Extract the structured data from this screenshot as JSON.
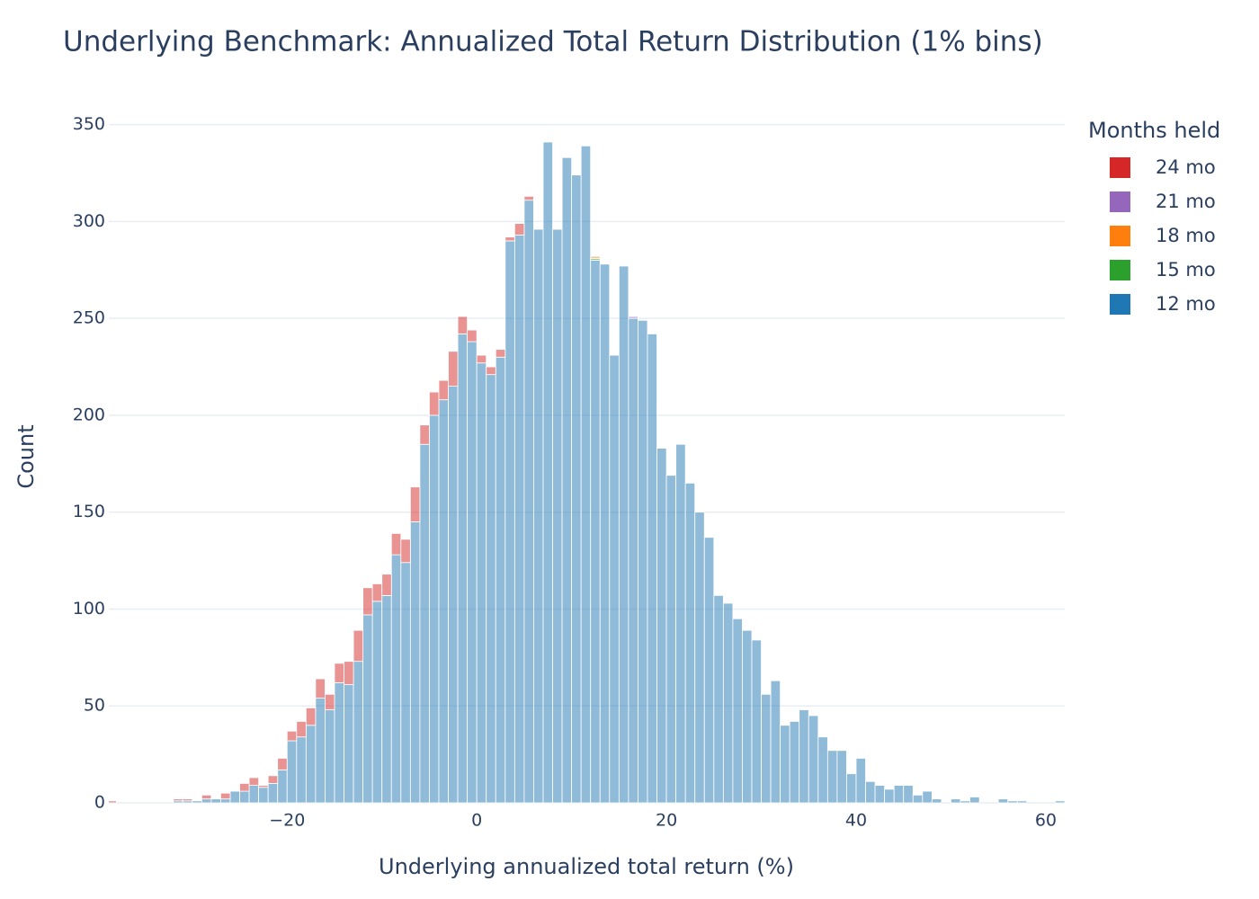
{
  "chart_data": {
    "type": "histogram",
    "title": "Underlying Benchmark: Annualized Total Return Distribution (1% bins)",
    "x_label": "Underlying annualized total return (%)",
    "y_label": "Count",
    "legend_title": "Months held",
    "legend_position": "right",
    "stacked": true,
    "opacity": 0.5,
    "grid": true,
    "bins": [
      -39,
      -38,
      -37,
      -36,
      -35,
      -34,
      -33,
      -32,
      -31,
      -30,
      -29,
      -28,
      -27,
      -26,
      -25,
      -24,
      -23,
      -22,
      -21,
      -20,
      -19,
      -18,
      -17,
      -16,
      -15,
      -14,
      -13,
      -12,
      -11,
      -10,
      -9,
      -8,
      -7,
      -6,
      -5,
      -4,
      -3,
      -2,
      -1,
      0,
      1,
      2,
      3,
      4,
      5,
      6,
      7,
      8,
      9,
      10,
      11,
      12,
      13,
      14,
      15,
      16,
      17,
      18,
      19,
      20,
      21,
      22,
      23,
      24,
      25,
      26,
      27,
      28,
      29,
      30,
      31,
      32,
      33,
      34,
      35,
      36,
      37,
      38,
      39,
      40,
      41,
      42,
      43,
      44,
      45,
      46,
      47,
      48,
      49,
      50,
      51,
      52,
      53,
      54,
      55,
      56,
      57,
      58,
      59,
      60,
      61,
      62
    ],
    "series": [
      {
        "name": "12 mo",
        "color": "#1f77b4",
        "values": [
          0,
          0,
          0,
          0,
          0,
          0,
          0,
          1,
          1,
          1,
          2,
          2,
          2,
          6,
          6,
          9,
          8,
          10,
          17,
          32,
          34,
          40,
          54,
          48,
          62,
          61,
          73,
          97,
          104,
          107,
          128,
          124,
          145,
          185,
          200,
          208,
          215,
          242,
          238,
          227,
          221,
          230,
          290,
          293,
          311,
          296,
          341,
          296,
          333,
          324,
          339,
          280,
          278,
          231,
          277,
          250,
          249,
          242,
          183,
          169,
          185,
          165,
          150,
          137,
          107,
          103,
          95,
          89,
          84,
          56,
          63,
          40,
          42,
          48,
          45,
          34,
          27,
          27,
          15,
          23,
          11,
          9,
          7,
          9,
          9,
          4,
          6,
          2,
          0,
          2,
          1,
          3,
          0,
          0,
          2,
          1,
          1,
          0,
          0,
          0,
          1
        ]
      },
      {
        "name": "15 mo",
        "color": "#2ca02c",
        "values": [
          0,
          0,
          0,
          0,
          0,
          0,
          0,
          0,
          0,
          0,
          0,
          0,
          0,
          0,
          0,
          0,
          0,
          0,
          0,
          0,
          0,
          0,
          0,
          0,
          0,
          0,
          0,
          0,
          0,
          0,
          0,
          0,
          0,
          0,
          0,
          0,
          0,
          0,
          0,
          0,
          0,
          0,
          0,
          0,
          0,
          0,
          0,
          0,
          0,
          0,
          0,
          1,
          0,
          0,
          0,
          0,
          0,
          0,
          0,
          0,
          0,
          0,
          0,
          0,
          0,
          0,
          0,
          0,
          0,
          0,
          0,
          0,
          0,
          0,
          0,
          0,
          0,
          0,
          0,
          0,
          0,
          0,
          0,
          0,
          0,
          0,
          0,
          0,
          0,
          0,
          0,
          0,
          0,
          0,
          0,
          0,
          0,
          0,
          0,
          0,
          0
        ]
      },
      {
        "name": "18 mo",
        "color": "#ff7f0e",
        "values": [
          0,
          0,
          0,
          0,
          0,
          0,
          0,
          0,
          0,
          0,
          0,
          0,
          0,
          0,
          0,
          0,
          0,
          0,
          0,
          0,
          0,
          0,
          0,
          0,
          0,
          0,
          0,
          0,
          0,
          0,
          0,
          0,
          0,
          0,
          0,
          0,
          0,
          0,
          0,
          0,
          0,
          0,
          0,
          0,
          0,
          0,
          0,
          0,
          0,
          0,
          0,
          1,
          0,
          0,
          0,
          0,
          0,
          0,
          0,
          0,
          0,
          0,
          0,
          0,
          0,
          0,
          0,
          0,
          0,
          0,
          0,
          0,
          0,
          0,
          0,
          0,
          0,
          0,
          0,
          0,
          0,
          0,
          0,
          0,
          0,
          0,
          0,
          0,
          0,
          0,
          0,
          0,
          0,
          0,
          0,
          0,
          0,
          0,
          0,
          0,
          0
        ]
      },
      {
        "name": "21 mo",
        "color": "#9467bd",
        "values": [
          0,
          0,
          0,
          0,
          0,
          0,
          0,
          0,
          0,
          0,
          0,
          0,
          0,
          0,
          0,
          0,
          0,
          0,
          0,
          0,
          0,
          0,
          0,
          0,
          0,
          0,
          0,
          0,
          0,
          0,
          0,
          0,
          0,
          0,
          0,
          0,
          0,
          0,
          0,
          0,
          0,
          0,
          0,
          0,
          0,
          0,
          0,
          0,
          0,
          0,
          0,
          0,
          0,
          0,
          0,
          1,
          0,
          0,
          0,
          0,
          0,
          0,
          0,
          0,
          0,
          0,
          0,
          0,
          0,
          0,
          0,
          0,
          0,
          0,
          0,
          0,
          0,
          0,
          0,
          0,
          0,
          0,
          0,
          0,
          0,
          0,
          0,
          0,
          0,
          0,
          0,
          0,
          0,
          0,
          0,
          0,
          0,
          0,
          0,
          0,
          0
        ]
      },
      {
        "name": "24 mo",
        "color": "#d62728",
        "values": [
          1,
          0,
          0,
          0,
          0,
          0,
          0,
          1,
          1,
          0,
          2,
          0,
          3,
          0,
          4,
          4,
          1,
          4,
          6,
          5,
          8,
          9,
          10,
          8,
          10,
          12,
          16,
          14,
          9,
          11,
          11,
          12,
          18,
          10,
          12,
          10,
          18,
          9,
          6,
          4,
          4,
          4,
          2,
          6,
          2,
          0,
          0,
          0,
          0,
          0,
          0,
          0,
          0,
          0,
          0,
          0,
          0,
          0,
          0,
          0,
          0,
          0,
          0,
          0,
          0,
          0,
          0,
          0,
          0,
          0,
          0,
          0,
          0,
          0,
          0,
          0,
          0,
          0,
          0,
          0,
          0,
          0,
          0,
          0,
          0,
          0,
          0,
          0,
          0,
          0,
          0,
          0,
          0,
          0,
          0,
          0,
          0,
          0,
          0,
          0,
          0
        ]
      }
    ],
    "xlim": [
      -38.8,
      62
    ],
    "xticks": [
      {
        "value": -20,
        "label": "−20"
      },
      0,
      20,
      40,
      60
    ],
    "ylim": [
      0,
      354
    ],
    "yticks": [
      0,
      50,
      100,
      150,
      200,
      250,
      300,
      350
    ]
  }
}
